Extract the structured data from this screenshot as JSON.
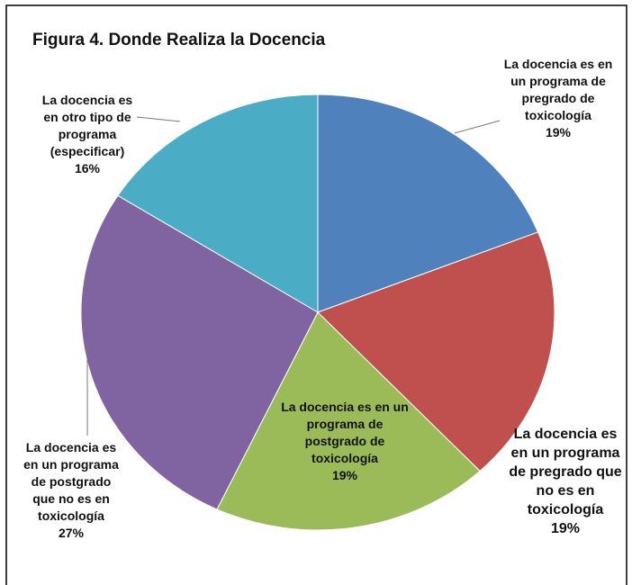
{
  "chart_data": {
    "type": "pie",
    "title": "Figura 4. Donde Realiza la Docencia",
    "categories": [
      "La docencia es en un programa de pregrado de toxicología",
      "La docencia es en un programa de pregrado que no es en toxicología",
      "La docencia es en un programa de postgrado de toxicología",
      "La docencia es en un programa de postgrado que no es en toxicología",
      "La docencia es en otro tipo de programa (especificar)"
    ],
    "values": [
      19,
      19,
      19,
      27,
      16
    ],
    "value_labels": [
      "19%",
      "19%",
      "19%",
      "27%",
      "16%"
    ],
    "colors": [
      "#4f81bd",
      "#c0504d",
      "#9bbb59",
      "#8064a2",
      "#4bacc6"
    ]
  }
}
